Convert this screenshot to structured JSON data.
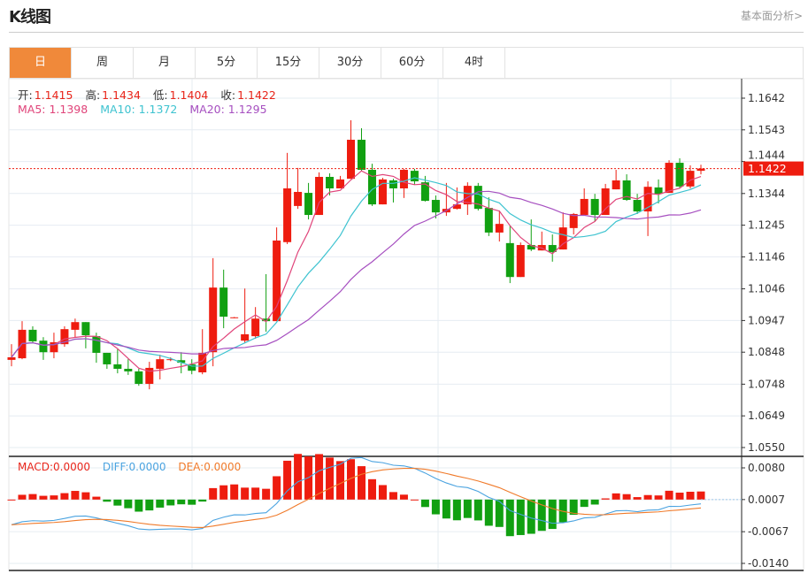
{
  "header": {
    "title": "K线图",
    "link": "基本面分析>"
  },
  "tabs": [
    {
      "label": "日",
      "active": true
    },
    {
      "label": "周"
    },
    {
      "label": "月"
    },
    {
      "label": "5分"
    },
    {
      "label": "15分"
    },
    {
      "label": "30分"
    },
    {
      "label": "60分"
    },
    {
      "label": "4时"
    }
  ],
  "ohlc_info": {
    "open_label": "开:",
    "open": "1.1415",
    "high_label": "高:",
    "high": "1.1434",
    "low_label": "低:",
    "low": "1.1404",
    "close_label": "收:",
    "close": "1.1422"
  },
  "ma_info": {
    "ma5": "MA5: 1.1398",
    "ma10": "MA10: 1.1372",
    "ma20": "MA20: 1.1295"
  },
  "macd_info": {
    "macd": "MACD:0.0000",
    "diff": "DIFF:0.0000",
    "dea": "DEA:0.0000"
  },
  "colors": {
    "up": "#ee1c0f",
    "down": "#11a011",
    "ma5": "#e0447a",
    "ma10": "#3ec3d0",
    "ma20": "#a64fc0",
    "diff": "#4aa3e0",
    "dea": "#f07a2a",
    "active_tab": "#f0893a"
  },
  "current_price": "1.1422",
  "chart_data": {
    "type": "candlestick",
    "price_ticks": [
      "1.1642",
      "1.1543",
      "1.1444",
      "1.1344",
      "1.1245",
      "1.1146",
      "1.1046",
      "1.0947",
      "1.0848",
      "1.0748",
      "1.0649",
      "1.0550"
    ],
    "price_range": [
      1.055,
      1.1642
    ],
    "macd_ticks": [
      "0.0080",
      "0.0007",
      "-0.0067",
      "-0.0140"
    ],
    "macd_range": [
      -0.014,
      0.008
    ],
    "candles": [
      [
        1.0824,
        1.0873,
        1.0804,
        1.0832
      ],
      [
        1.0829,
        1.0945,
        1.0826,
        1.0918
      ],
      [
        1.0918,
        1.0929,
        1.0876,
        1.0882
      ],
      [
        1.0884,
        1.0895,
        1.0824,
        1.0848
      ],
      [
        1.0848,
        1.0909,
        1.0829,
        1.0879
      ],
      [
        1.0873,
        1.0929,
        1.0865,
        1.092
      ],
      [
        1.0918,
        1.0953,
        1.0893,
        1.0942
      ],
      [
        1.0942,
        1.0942,
        1.086,
        1.0901
      ],
      [
        1.0898,
        1.0909,
        1.0815,
        1.0846
      ],
      [
        1.0846,
        1.0846,
        1.0796,
        1.081
      ],
      [
        1.081,
        1.0857,
        1.0782,
        1.0796
      ],
      [
        1.0796,
        1.0826,
        1.0777,
        1.0788
      ],
      [
        1.0788,
        1.0796,
        1.0743,
        1.0749
      ],
      [
        1.0749,
        1.0818,
        1.0732,
        1.0799
      ],
      [
        1.0796,
        1.084,
        1.0763,
        1.0826
      ],
      [
        1.0826,
        1.0832,
        1.082,
        1.0826
      ],
      [
        1.0823,
        1.0848,
        1.0782,
        1.0815
      ],
      [
        1.081,
        1.0826,
        1.0779,
        1.079
      ],
      [
        1.0785,
        1.092,
        1.0779,
        1.0846
      ],
      [
        1.0848,
        1.1142,
        1.0804,
        1.105
      ],
      [
        1.105,
        1.1106,
        1.0923,
        1.0959
      ],
      [
        1.0956,
        1.0958,
        1.0954,
        1.0957
      ],
      [
        1.0884,
        1.1047,
        1.0876,
        1.0904
      ],
      [
        1.0898,
        1.0989,
        1.089,
        1.0953
      ],
      [
        1.0953,
        1.1092,
        1.0912,
        1.0945
      ],
      [
        1.0945,
        1.1238,
        1.0945,
        1.1197
      ],
      [
        1.1192,
        1.1471,
        1.1186,
        1.136
      ],
      [
        1.1305,
        1.1424,
        1.1296,
        1.1349
      ],
      [
        1.1346,
        1.1377,
        1.1263,
        1.1277
      ],
      [
        1.1277,
        1.141,
        1.1277,
        1.1396
      ],
      [
        1.1396,
        1.1407,
        1.1338,
        1.136
      ],
      [
        1.136,
        1.1399,
        1.136,
        1.1388
      ],
      [
        1.139,
        1.1573,
        1.139,
        1.1512
      ],
      [
        1.1512,
        1.1548,
        1.1415,
        1.1418
      ],
      [
        1.1418,
        1.1437,
        1.1305,
        1.131
      ],
      [
        1.131,
        1.1393,
        1.131,
        1.1388
      ],
      [
        1.1385,
        1.139,
        1.1316,
        1.136
      ],
      [
        1.136,
        1.1421,
        1.133,
        1.1418
      ],
      [
        1.1415,
        1.1421,
        1.1371,
        1.1382
      ],
      [
        1.1379,
        1.1399,
        1.1319,
        1.1321
      ],
      [
        1.1324,
        1.1338,
        1.1266,
        1.1285
      ],
      [
        1.1285,
        1.1377,
        1.1274,
        1.1296
      ],
      [
        1.1296,
        1.1363,
        1.1294,
        1.131
      ],
      [
        1.131,
        1.1379,
        1.1277,
        1.1368
      ],
      [
        1.1368,
        1.1377,
        1.1291,
        1.1296
      ],
      [
        1.1299,
        1.1332,
        1.1211,
        1.1222
      ],
      [
        1.1222,
        1.1291,
        1.1194,
        1.1249
      ],
      [
        1.1189,
        1.1244,
        1.1064,
        1.1083
      ],
      [
        1.1083,
        1.1191,
        1.1083,
        1.1183
      ],
      [
        1.1183,
        1.1263,
        1.1164,
        1.1169
      ],
      [
        1.1166,
        1.1225,
        1.1166,
        1.1183
      ],
      [
        1.1183,
        1.1216,
        1.1131,
        1.1161
      ],
      [
        1.1169,
        1.1285,
        1.1169,
        1.1238
      ],
      [
        1.1236,
        1.1283,
        1.1216,
        1.128
      ],
      [
        1.1277,
        1.136,
        1.1277,
        1.1327
      ],
      [
        1.1327,
        1.1343,
        1.1258,
        1.1277
      ],
      [
        1.1277,
        1.1374,
        1.1277,
        1.136
      ],
      [
        1.1357,
        1.1418,
        1.1357,
        1.1385
      ],
      [
        1.1385,
        1.1404,
        1.1321,
        1.1324
      ],
      [
        1.1324,
        1.1343,
        1.128,
        1.1288
      ],
      [
        1.1288,
        1.1382,
        1.1211,
        1.1365
      ],
      [
        1.1363,
        1.1388,
        1.1313,
        1.1343
      ],
      [
        1.1346,
        1.1448,
        1.1346,
        1.144
      ],
      [
        1.144,
        1.1454,
        1.136,
        1.1366
      ],
      [
        1.1366,
        1.1432,
        1.136,
        1.1415
      ],
      [
        1.1415,
        1.1434,
        1.1404,
        1.1422
      ]
    ],
    "candle_format": [
      "open",
      "high",
      "low",
      "close"
    ],
    "moving_averages": [
      5,
      10,
      20
    ],
    "grid": true
  }
}
